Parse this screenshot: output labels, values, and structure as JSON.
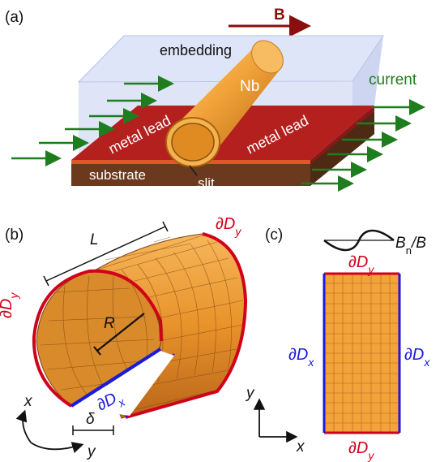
{
  "panel_a": {
    "label": "(a)",
    "field_label": "B",
    "embedding": "embedding",
    "material": "Nb",
    "current": "current",
    "lead_left": "metal lead",
    "lead_right": "metal lead",
    "substrate": "substrate",
    "slit": "slit"
  },
  "panel_b": {
    "label": "(b)",
    "length": "L",
    "radius": "R",
    "gap": "δ",
    "edge_y_left": "∂D",
    "edge_y_right": "∂D",
    "edge_x_inner": "∂D",
    "edge_x_outer": "∂D",
    "axis_x": "x",
    "axis_y": "y"
  },
  "panel_c": {
    "label": "(c)",
    "field_ratio_main": "B",
    "field_ratio_sub": "n",
    "field_ratio_tail": "/B",
    "edge_top": "∂D",
    "edge_bottom": "∂D",
    "edge_left": "∂D",
    "edge_right": "∂D",
    "axis_x": "x",
    "axis_y": "y"
  },
  "colors": {
    "copper": "#f2a33a",
    "lead": "#b3201e",
    "substrate": "#6b3a1e",
    "embedding": "#c9d3f2",
    "edge_red": "#d0021b",
    "edge_blue": "#1a1adc",
    "arrow_green": "#1e7d1e",
    "field_arrow": "#8b0e0e"
  }
}
